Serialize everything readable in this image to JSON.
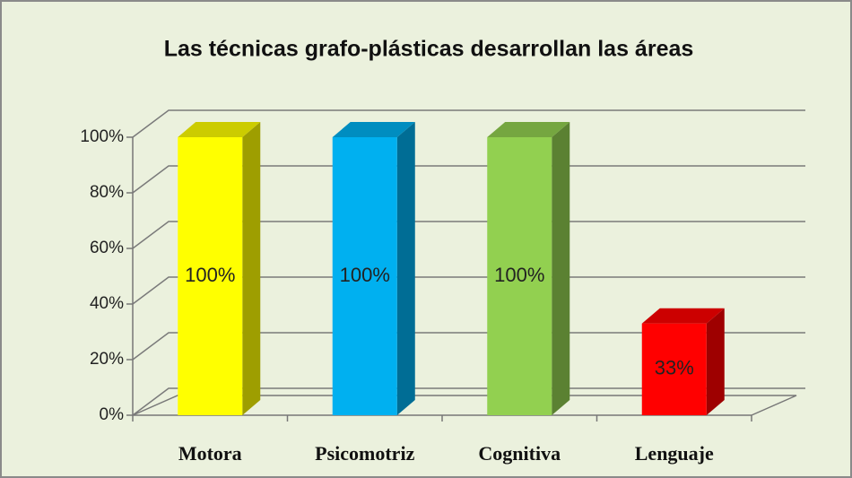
{
  "chart_data": {
    "type": "bar3d",
    "title": "Las técnicas grafo-plásticas desarrollan  las áreas",
    "categories": [
      "Motora",
      "Psicomotriz",
      "Cognitiva",
      "Lenguaje"
    ],
    "values": [
      100,
      100,
      100,
      33
    ],
    "value_labels": [
      "100%",
      "100%",
      "100%",
      "33%"
    ],
    "colors": [
      "#ffff00",
      "#00b0f0",
      "#92d050",
      "#ff0000"
    ],
    "ylim": [
      0,
      100
    ],
    "yticks": [
      {
        "value": 0,
        "label": "0%"
      },
      {
        "value": 20,
        "label": "20%"
      },
      {
        "value": 40,
        "label": "40%"
      },
      {
        "value": 60,
        "label": "60%"
      },
      {
        "value": 80,
        "label": "80%"
      },
      {
        "value": 100,
        "label": "100%"
      }
    ],
    "grid": true
  }
}
